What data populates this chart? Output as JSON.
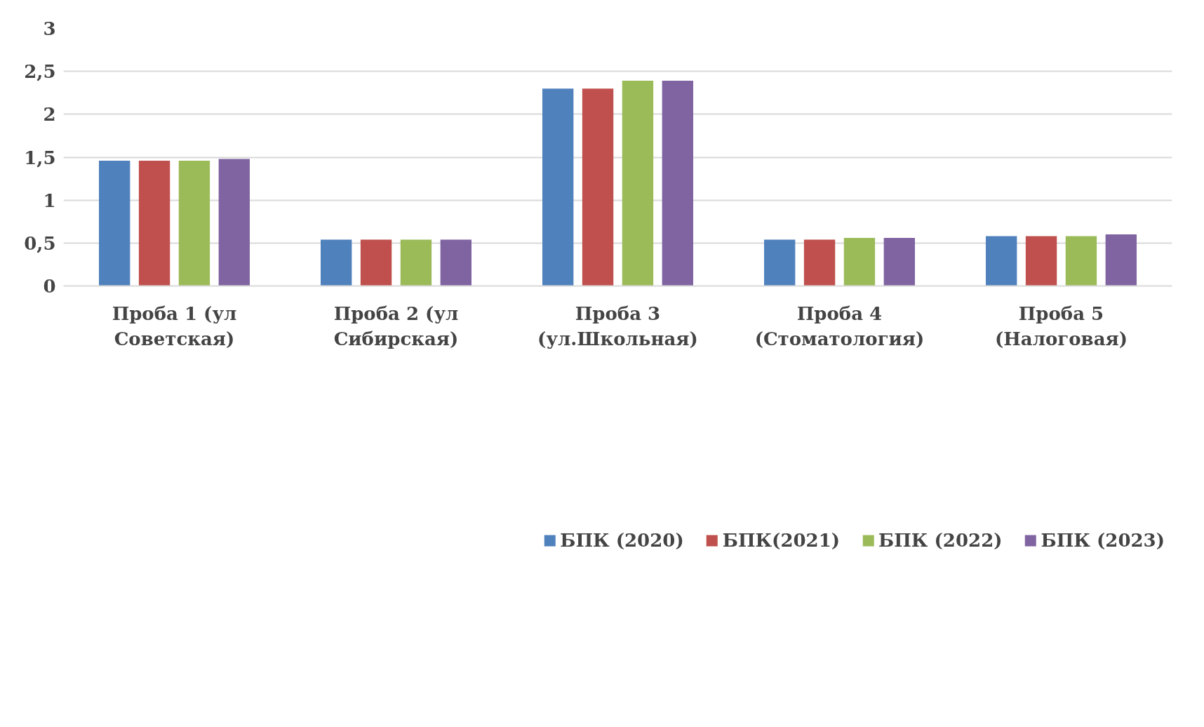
{
  "chart_data": {
    "type": "bar",
    "categories": [
      "Проба 1 (ул\nСоветская)",
      "Проба 2 (ул\nСибирская)",
      "Проба 3\n(ул.Школьная)",
      "Проба 4\n(Стоматология)",
      "Проба 5\n(Налоговая)"
    ],
    "series": [
      {
        "name": "БПК (2020)",
        "color": "#4f81bd",
        "values": [
          1.46,
          0.54,
          2.3,
          0.54,
          0.58
        ]
      },
      {
        "name": "БПК(2021)",
        "color": "#c0504d",
        "values": [
          1.46,
          0.54,
          2.3,
          0.54,
          0.58
        ]
      },
      {
        "name": "БПК (2022)",
        "color": "#9bbb59",
        "values": [
          1.46,
          0.54,
          2.39,
          0.56,
          0.58
        ]
      },
      {
        "name": "БПК (2023)",
        "color": "#8064a2",
        "values": [
          1.48,
          0.54,
          2.39,
          0.56,
          0.6
        ]
      }
    ],
    "ylim": [
      0,
      3
    ],
    "yticks": [
      0,
      {
        "value": 0.5,
        "label": "0,5"
      },
      1,
      {
        "value": 1.5,
        "label": "1,5"
      },
      2,
      {
        "value": 2.5,
        "label": "2,5"
      },
      3
    ],
    "grid": "y",
    "legend": "bottom"
  }
}
